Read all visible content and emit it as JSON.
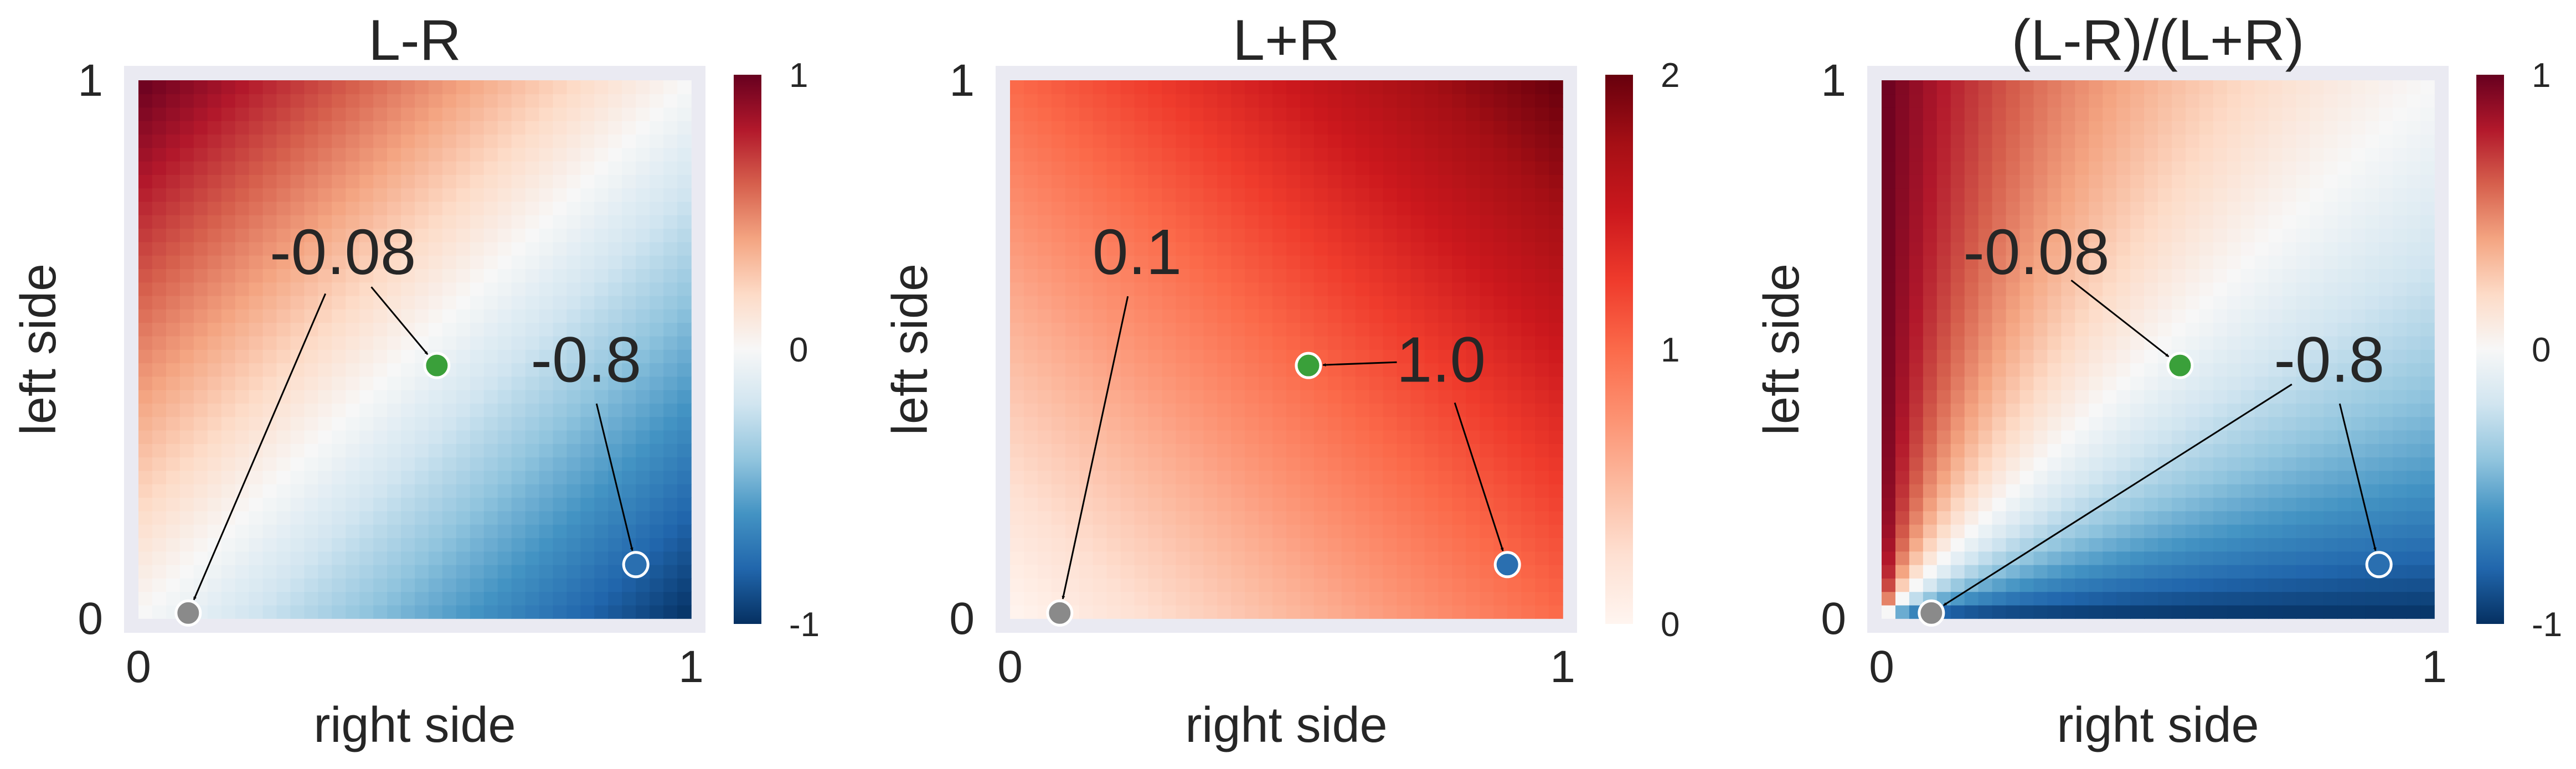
{
  "chart_data": [
    {
      "type": "heatmap",
      "title": "L-R",
      "function": "diff",
      "xlabel": "right side",
      "ylabel": "left side",
      "xlim": [
        0,
        1
      ],
      "ylim": [
        0,
        1
      ],
      "x_ticks": [
        "0",
        "1"
      ],
      "y_ticks": [
        "0",
        "1"
      ],
      "colormap": "RdBu_r",
      "colorbar": {
        "range": [
          -1,
          1
        ],
        "ticks": [
          {
            "value": 1,
            "label": "1"
          },
          {
            "value": 0,
            "label": "0"
          },
          {
            "value": -1,
            "label": "-1"
          }
        ]
      },
      "points": [
        {
          "x": 0.09,
          "y": 0.01,
          "color": "#8a8a8a",
          "annotation": "-0.08",
          "text_at": [
            0.37,
            0.64
          ]
        },
        {
          "x": 0.54,
          "y": 0.47,
          "color": "#3aa03a",
          "annotation": "-0.08",
          "text_at": [
            0.37,
            0.64
          ]
        },
        {
          "x": 0.9,
          "y": 0.1,
          "color": "#2a6fb0",
          "annotation": "-0.8",
          "text_at": [
            0.81,
            0.44
          ]
        }
      ]
    },
    {
      "type": "heatmap",
      "title": "L+R",
      "function": "sum",
      "xlabel": "right side",
      "ylabel": "left side",
      "xlim": [
        0,
        1
      ],
      "ylim": [
        0,
        1
      ],
      "x_ticks": [
        "0",
        "1"
      ],
      "y_ticks": [
        "0",
        "1"
      ],
      "colormap": "Reds",
      "colorbar": {
        "range": [
          0,
          2
        ],
        "ticks": [
          {
            "value": 2,
            "label": "2"
          },
          {
            "value": 1,
            "label": "1"
          },
          {
            "value": 0,
            "label": "0"
          }
        ]
      },
      "points": [
        {
          "x": 0.09,
          "y": 0.01,
          "color": "#8a8a8a",
          "annotation": "0.1",
          "text_at": [
            0.23,
            0.64
          ]
        },
        {
          "x": 0.54,
          "y": 0.47,
          "color": "#3aa03a",
          "annotation": "1.0",
          "text_at": [
            0.78,
            0.44
          ]
        },
        {
          "x": 0.9,
          "y": 0.1,
          "color": "#2a6fb0",
          "annotation": "1.0",
          "text_at": [
            0.78,
            0.44
          ]
        }
      ]
    },
    {
      "type": "heatmap",
      "title": "(L-R)/(L+R)",
      "function": "ratio",
      "xlabel": "right side",
      "ylabel": "left side",
      "xlim": [
        0,
        1
      ],
      "ylim": [
        0,
        1
      ],
      "x_ticks": [
        "0",
        "1"
      ],
      "y_ticks": [
        "0",
        "1"
      ],
      "colormap": "RdBu_r",
      "colorbar": {
        "range": [
          -1,
          1
        ],
        "ticks": [
          {
            "value": 1,
            "label": "1"
          },
          {
            "value": 0,
            "label": "0"
          },
          {
            "value": -1,
            "label": "-1"
          }
        ]
      },
      "points": [
        {
          "x": 0.09,
          "y": 0.01,
          "color": "#8a8a8a",
          "annotation": "-0.8",
          "text_at": [
            0.81,
            0.44
          ]
        },
        {
          "x": 0.54,
          "y": 0.47,
          "color": "#3aa03a",
          "annotation": "-0.08",
          "text_at": [
            0.28,
            0.64
          ]
        },
        {
          "x": 0.9,
          "y": 0.1,
          "color": "#2a6fb0",
          "annotation": "-0.8",
          "text_at": [
            0.81,
            0.44
          ]
        }
      ]
    }
  ]
}
